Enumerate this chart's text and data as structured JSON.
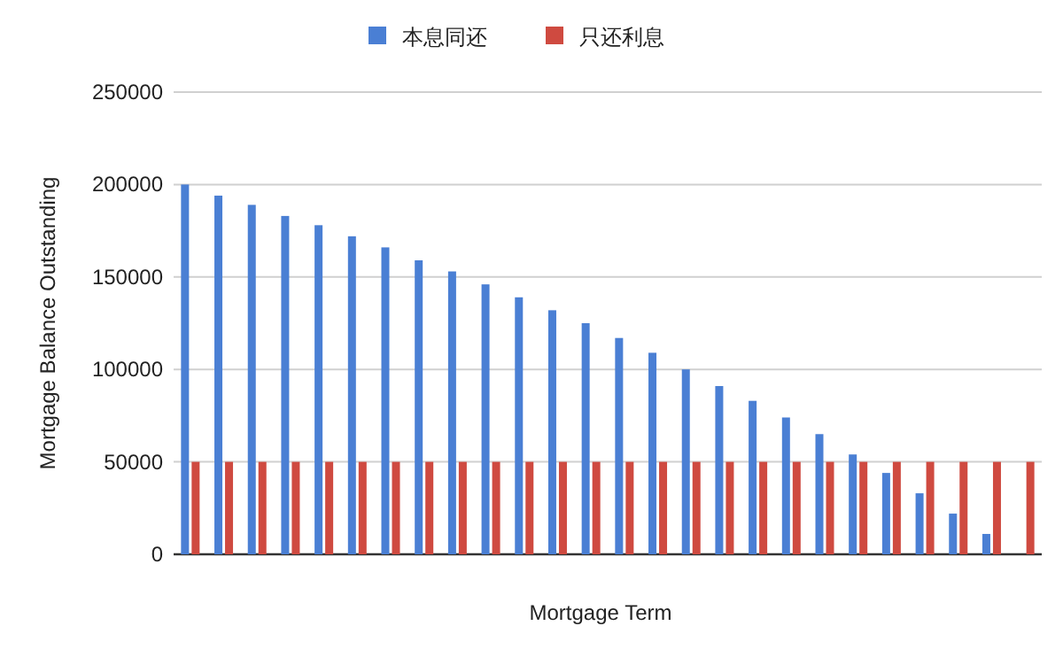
{
  "chart_data": {
    "type": "bar",
    "xlabel": "Mortgage Term",
    "ylabel": "Mortgage Balance Outstanding",
    "categories": [
      null,
      null,
      null,
      null,
      null,
      null,
      null,
      null,
      null,
      null,
      null,
      null,
      null,
      null,
      null,
      null,
      null,
      null,
      null,
      null,
      null,
      null,
      null,
      null,
      null,
      null
    ],
    "series": [
      {
        "name": "本息同还",
        "color": "#4a7fd4",
        "values": [
          200000,
          194000,
          189000,
          183000,
          178000,
          172000,
          166000,
          159000,
          153000,
          146000,
          139000,
          132000,
          125000,
          117000,
          109000,
          100000,
          91000,
          83000,
          74000,
          65000,
          54000,
          44000,
          33000,
          22000,
          11000,
          0
        ]
      },
      {
        "name": "只还利息",
        "color": "#cf4a40",
        "values": [
          50000,
          50000,
          50000,
          50000,
          50000,
          50000,
          50000,
          50000,
          50000,
          50000,
          50000,
          50000,
          50000,
          50000,
          50000,
          50000,
          50000,
          50000,
          50000,
          50000,
          50000,
          50000,
          50000,
          50000,
          50000,
          50000
        ]
      }
    ],
    "ylim": [
      0,
      250000
    ],
    "yticks": [
      0,
      50000,
      100000,
      150000,
      200000,
      250000
    ],
    "grid": "y",
    "legend": "top"
  }
}
